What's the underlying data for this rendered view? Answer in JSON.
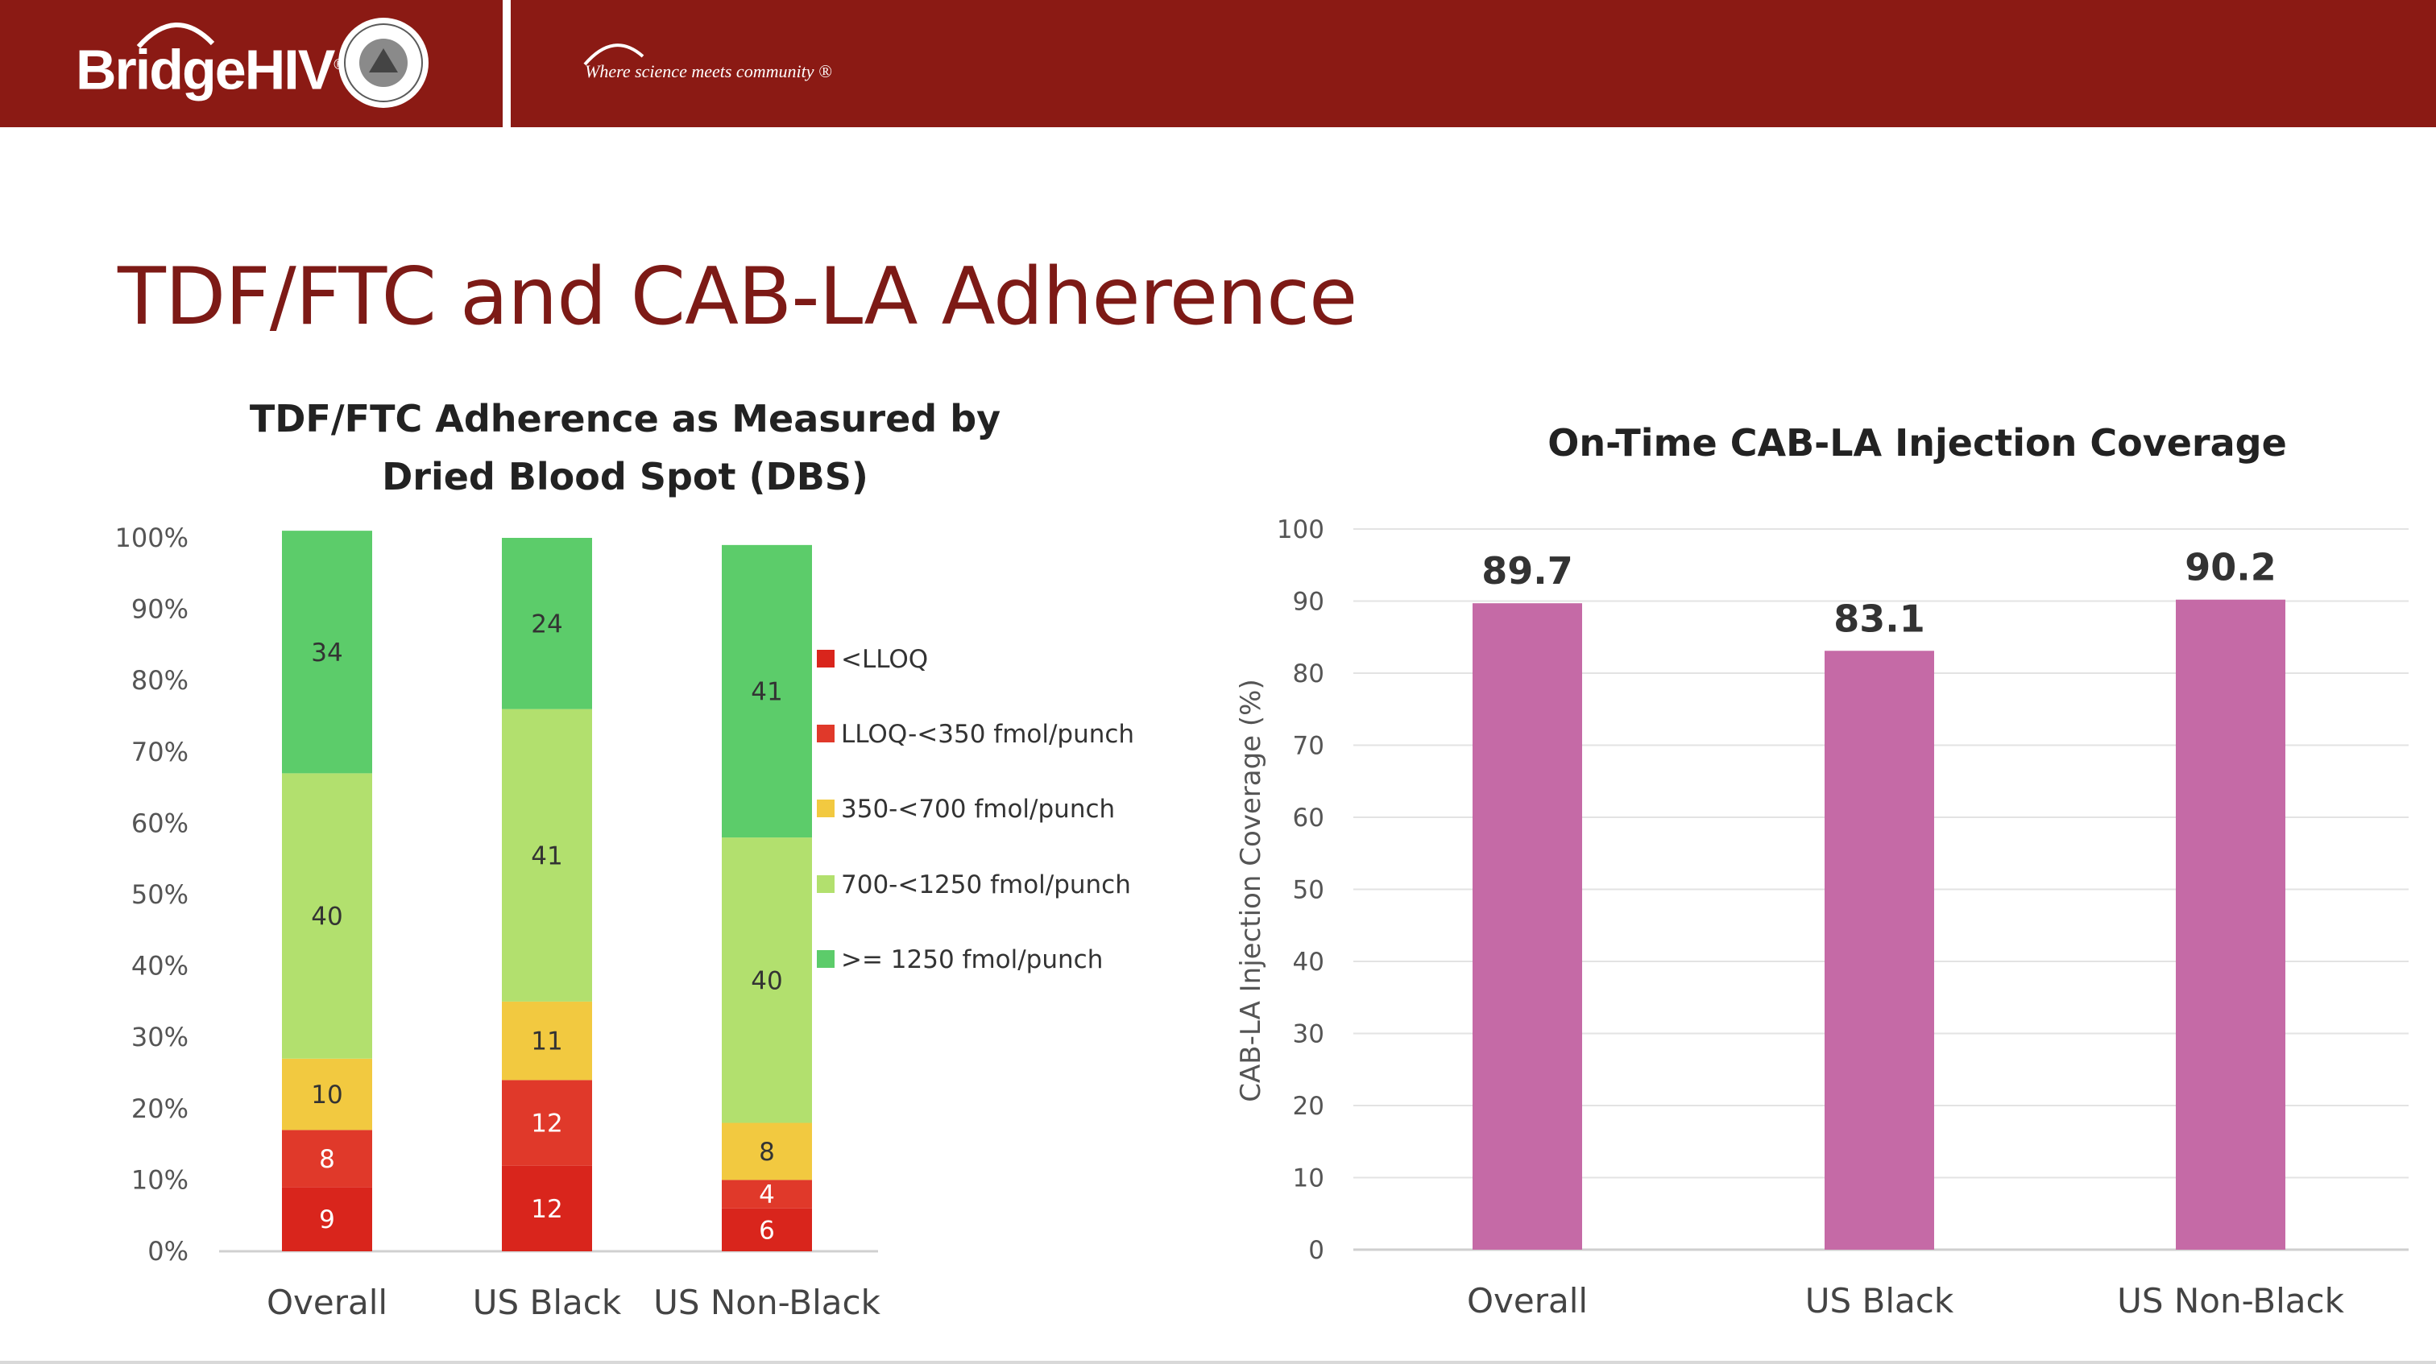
{
  "header": {
    "logo_text": "BridgeHIV",
    "logo_mark": "®",
    "tagline": "Where science meets community ®",
    "colors": {
      "band": "#8b1a14"
    }
  },
  "slide": {
    "title": "TDF/FTC and CAB-LA Adherence"
  },
  "chart_data": [
    {
      "type": "bar",
      "stacked": true,
      "title": "TDF/FTC Adherence as Measured by Dried Blood Spot (DBS)",
      "title_lines": [
        "TDF/FTC Adherence as Measured by",
        "Dried Blood Spot (DBS)"
      ],
      "categories": [
        "Overall",
        "US Black",
        "US Non-Black"
      ],
      "y_ticks": [
        "0%",
        "10%",
        "20%",
        "30%",
        "40%",
        "50%",
        "60%",
        "70%",
        "80%",
        "90%",
        "100%"
      ],
      "ylim": [
        0,
        100
      ],
      "legend_position": "right",
      "series": [
        {
          "name": "<LLOQ",
          "color": "#d9251c",
          "values": [
            9,
            12,
            6
          ]
        },
        {
          "name": "LLOQ-<350 fmol/punch",
          "color": "#e0392a",
          "values": [
            8,
            12,
            4
          ]
        },
        {
          "name": "350-<700 fmol/punch",
          "color": "#f2c940",
          "values": [
            10,
            11,
            8
          ]
        },
        {
          "name": "700-<1250 fmol/punch",
          "color": "#b2e06e",
          "values": [
            40,
            41,
            40
          ]
        },
        {
          "name": ">= 1250 fmol/punch",
          "color": "#5ccc6a",
          "values": [
            34,
            24,
            41
          ]
        }
      ]
    },
    {
      "type": "bar",
      "title": "On-Time CAB-LA Injection Coverage",
      "ylabel": "CAB-LA Injection Coverage (%)",
      "categories": [
        "Overall",
        "US Black",
        "US Non-Black"
      ],
      "values": [
        89.7,
        83.1,
        90.2
      ],
      "value_labels": [
        "89.7",
        "83.1",
        "90.2"
      ],
      "y_ticks": [
        "0",
        "10",
        "20",
        "30",
        "40",
        "50",
        "60",
        "70",
        "80",
        "90",
        "100"
      ],
      "ylim": [
        0,
        100
      ],
      "grid": true,
      "color": "#c56aa6"
    }
  ]
}
